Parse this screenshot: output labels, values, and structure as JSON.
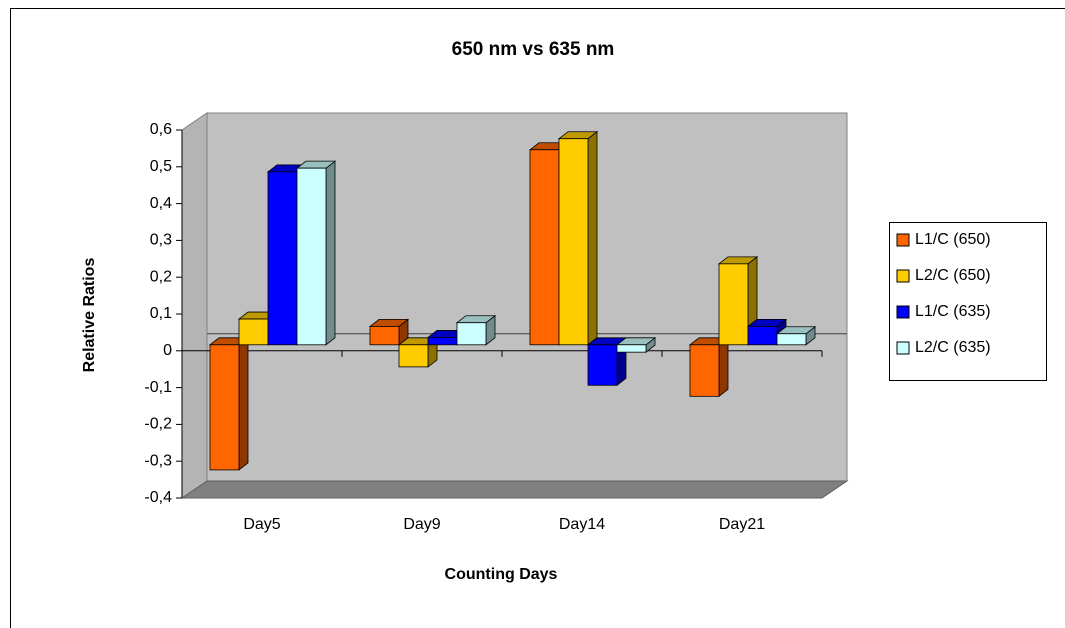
{
  "chart_data": {
    "type": "bar3d",
    "title": "650 nm vs 635 nm",
    "x_label": "Counting Days",
    "y_label": "Relative Ratios",
    "categories": [
      "Day5",
      "Day9",
      "Day14",
      "Day21"
    ],
    "series": [
      {
        "name": "L1/C (650)",
        "color": "#ff6600",
        "values": [
          -0.34,
          0.05,
          0.53,
          -0.14
        ]
      },
      {
        "name": "L2/C (650)",
        "color": "#ffcc00",
        "values": [
          0.07,
          -0.06,
          0.56,
          0.22
        ]
      },
      {
        "name": "L1/C (635)",
        "color": "#0000ff",
        "values": [
          0.47,
          0.02,
          -0.11,
          0.05
        ]
      },
      {
        "name": "L2/C (635)",
        "color": "#ccffff",
        "values": [
          0.48,
          0.06,
          -0.02,
          0.03
        ]
      }
    ],
    "ylim": [
      -0.4,
      0.6
    ],
    "yticks": [
      {
        "value": -0.4,
        "label": "-0,4"
      },
      {
        "value": -0.3,
        "label": "-0,3"
      },
      {
        "value": -0.2,
        "label": "-0,2"
      },
      {
        "value": -0.1,
        "label": "-0,1"
      },
      0,
      {
        "value": 0.1,
        "label": "0,1"
      },
      {
        "value": 0.2,
        "label": "0,2"
      },
      {
        "value": 0.3,
        "label": "0,3"
      },
      {
        "value": 0.4,
        "label": "0,4"
      },
      {
        "value": 0.5,
        "label": "0,5"
      },
      {
        "value": 0.6,
        "label": "0,6"
      }
    ],
    "legend": "right"
  }
}
